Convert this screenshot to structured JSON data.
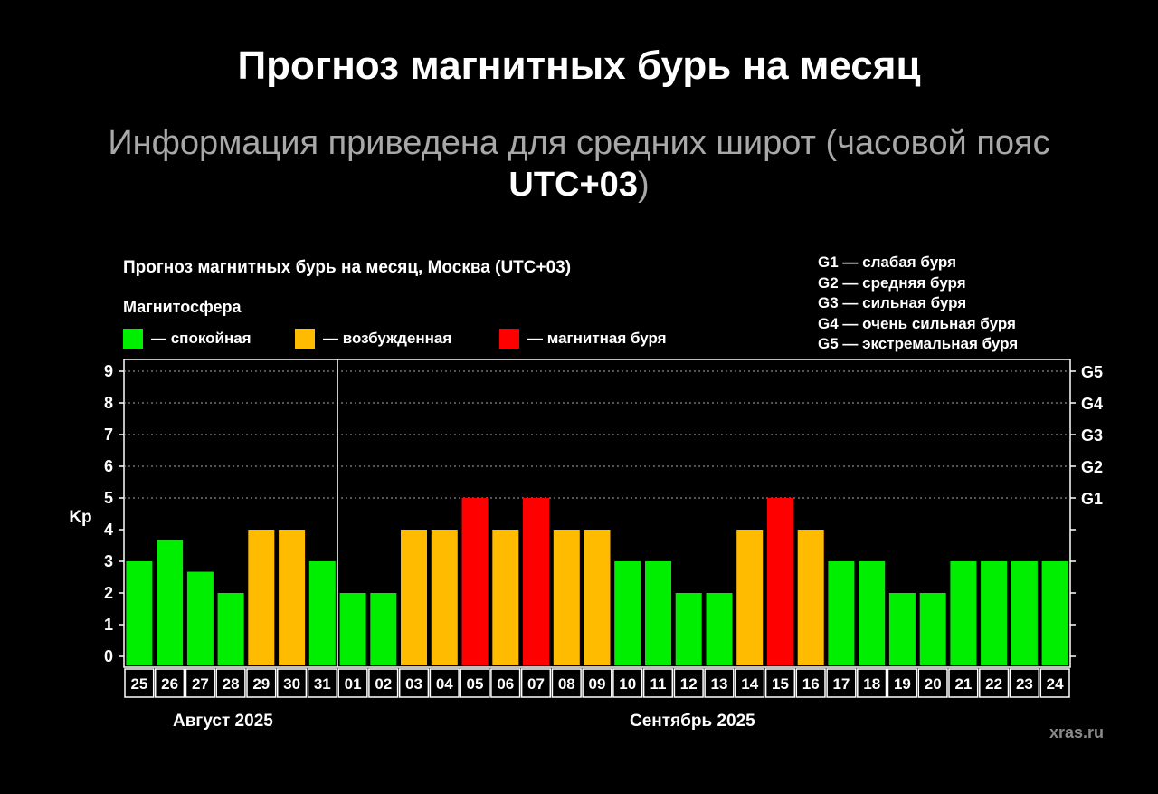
{
  "header": {
    "title": "Прогноз магнитных бурь на месяц",
    "subtitle_main": "Информация приведена для средних широт (часовой пояс",
    "subtitle_utc": "UTC+03",
    "subtitle_close": ")"
  },
  "legend": {
    "heading": "Магнитосфера",
    "items": [
      {
        "label": "— спокойная",
        "color": "#00ee00"
      },
      {
        "label": "— возбужденная",
        "color": "#ffbb00"
      },
      {
        "label": "— магнитная буря",
        "color": "#ff0000"
      }
    ]
  },
  "g_legend": [
    "G1 — слабая буря",
    "G2 — средняя буря",
    "G3 — сильная буря",
    "G4 — очень сильная буря",
    "G5 — экстремальная буря"
  ],
  "months": {
    "first": "Август 2025",
    "second": "Сентябрь 2025"
  },
  "watermark": "xras.ru",
  "chart_data": {
    "type": "bar",
    "title": "Прогноз магнитных бурь на месяц, Москва (UTC+03)",
    "ylabel": "Kp",
    "xlabel": "",
    "ylim": [
      0,
      9
    ],
    "yticks": [
      "0",
      "1",
      "2",
      "3",
      "4",
      "5",
      "6",
      "7",
      "8",
      "9"
    ],
    "right_axis_labels": [
      {
        "kp": 5,
        "label": "G1"
      },
      {
        "kp": 6,
        "label": "G2"
      },
      {
        "kp": 7,
        "label": "G3"
      },
      {
        "kp": 8,
        "label": "G4"
      },
      {
        "kp": 9,
        "label": "G5"
      }
    ],
    "grid": "dashed horizontal at Kp 5–9",
    "categories": [
      "25",
      "26",
      "27",
      "28",
      "29",
      "30",
      "31",
      "01",
      "02",
      "03",
      "04",
      "05",
      "06",
      "07",
      "08",
      "09",
      "10",
      "11",
      "12",
      "13",
      "14",
      "15",
      "16",
      "17",
      "18",
      "19",
      "20",
      "21",
      "22",
      "23",
      "24"
    ],
    "values": [
      3,
      3.67,
      2.67,
      2,
      4,
      4,
      3,
      2,
      2,
      4,
      4,
      5,
      4,
      5,
      4,
      4,
      3,
      3,
      2,
      2,
      4,
      5,
      4,
      3,
      3,
      2,
      2,
      3,
      3,
      3,
      3
    ],
    "month_split_after_index": 6,
    "colors": {
      "quiet": "#00ee00",
      "active": "#ffbb00",
      "storm": "#ff0000"
    }
  }
}
